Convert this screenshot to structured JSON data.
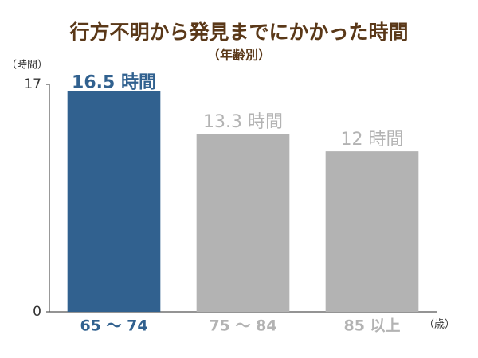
{
  "chart_data": {
    "type": "bar",
    "title": "行方不明から発見までにかかった時間",
    "subtitle": "（年齢別）",
    "y_label": "（時間）",
    "x_label": "（歳）",
    "categories": [
      "65 ～ 74",
      "75 ～ 84",
      "85 以上"
    ],
    "values": [
      16.5,
      13.3,
      12
    ],
    "value_labels": [
      "16.5 時間",
      "13.3 時間",
      "12 時間"
    ],
    "colors": [
      "#31618f",
      "#b3b3b3",
      "#b3b3b3"
    ],
    "ylim": [
      0,
      17
    ],
    "yticks": [
      0,
      17
    ],
    "grid": false
  }
}
